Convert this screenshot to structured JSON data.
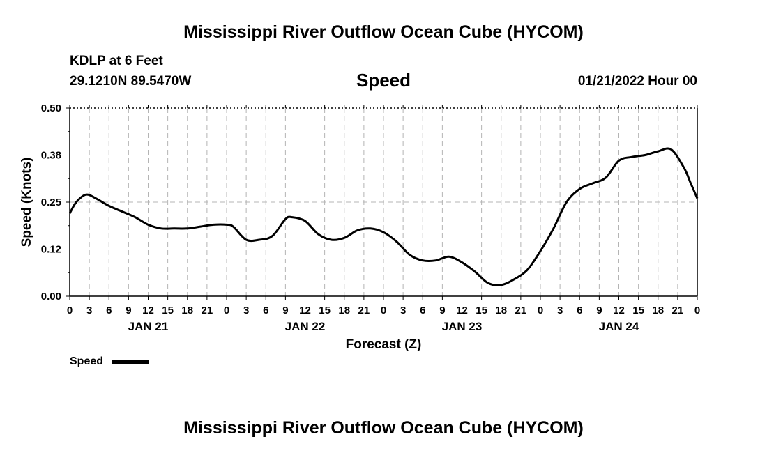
{
  "header": {
    "title_top": "Mississippi River Outflow Ocean Cube (HYCOM)",
    "station": "KDLP at 6 Feet",
    "coords": "29.1210N  89.5470W",
    "datetime": "01/21/2022 Hour 00",
    "title_bottom": "Mississippi River Outflow Ocean Cube (HYCOM)"
  },
  "legend": {
    "label": "Speed",
    "color": "#000000"
  },
  "chart_data": {
    "type": "line",
    "title": "Speed",
    "xlabel": "Forecast (Z)",
    "ylabel": "Speed (Knots)",
    "xlim": [
      0,
      96
    ],
    "ylim": [
      0,
      0.5
    ],
    "yticks": [
      "0.00",
      "0.12",
      "0.25",
      "0.38",
      "0.50"
    ],
    "ytick_values": [
      0,
      0.125,
      0.25,
      0.375,
      0.5
    ],
    "xtick_labels": [
      "0",
      "3",
      "6",
      "9",
      "12",
      "15",
      "18",
      "21",
      "0",
      "3",
      "6",
      "9",
      "12",
      "15",
      "18",
      "21",
      "0",
      "3",
      "6",
      "9",
      "12",
      "15",
      "18",
      "21",
      "0",
      "3",
      "6",
      "9",
      "12",
      "15",
      "18",
      "21",
      "0"
    ],
    "day_labels": [
      {
        "label": "JAN 21",
        "hour": 12
      },
      {
        "label": "JAN 22",
        "hour": 36
      },
      {
        "label": "JAN 23",
        "hour": 60
      },
      {
        "label": "JAN 24",
        "hour": 84
      }
    ],
    "grid": true,
    "series": [
      {
        "name": "Speed",
        "color": "#000000",
        "x": [
          0,
          1,
          2.5,
          4,
          6,
          8,
          10,
          12,
          14,
          16,
          18,
          20,
          22,
          24,
          25,
          27,
          29,
          31,
          33,
          34,
          36,
          38,
          40,
          42,
          44,
          46,
          48,
          50,
          52,
          54,
          56,
          58,
          60,
          62,
          64,
          66,
          68,
          70,
          72,
          74,
          76,
          78,
          80,
          82,
          84,
          86,
          88,
          90,
          92,
          94,
          95,
          96
        ],
        "values": [
          0.22,
          0.25,
          0.27,
          0.26,
          0.24,
          0.225,
          0.21,
          0.19,
          0.18,
          0.18,
          0.18,
          0.185,
          0.19,
          0.19,
          0.185,
          0.15,
          0.15,
          0.16,
          0.205,
          0.21,
          0.2,
          0.165,
          0.15,
          0.155,
          0.175,
          0.18,
          0.17,
          0.145,
          0.11,
          0.095,
          0.095,
          0.105,
          0.09,
          0.065,
          0.035,
          0.03,
          0.045,
          0.07,
          0.12,
          0.18,
          0.25,
          0.285,
          0.3,
          0.315,
          0.36,
          0.37,
          0.375,
          0.385,
          0.39,
          0.34,
          0.3,
          0.26
        ]
      }
    ]
  }
}
